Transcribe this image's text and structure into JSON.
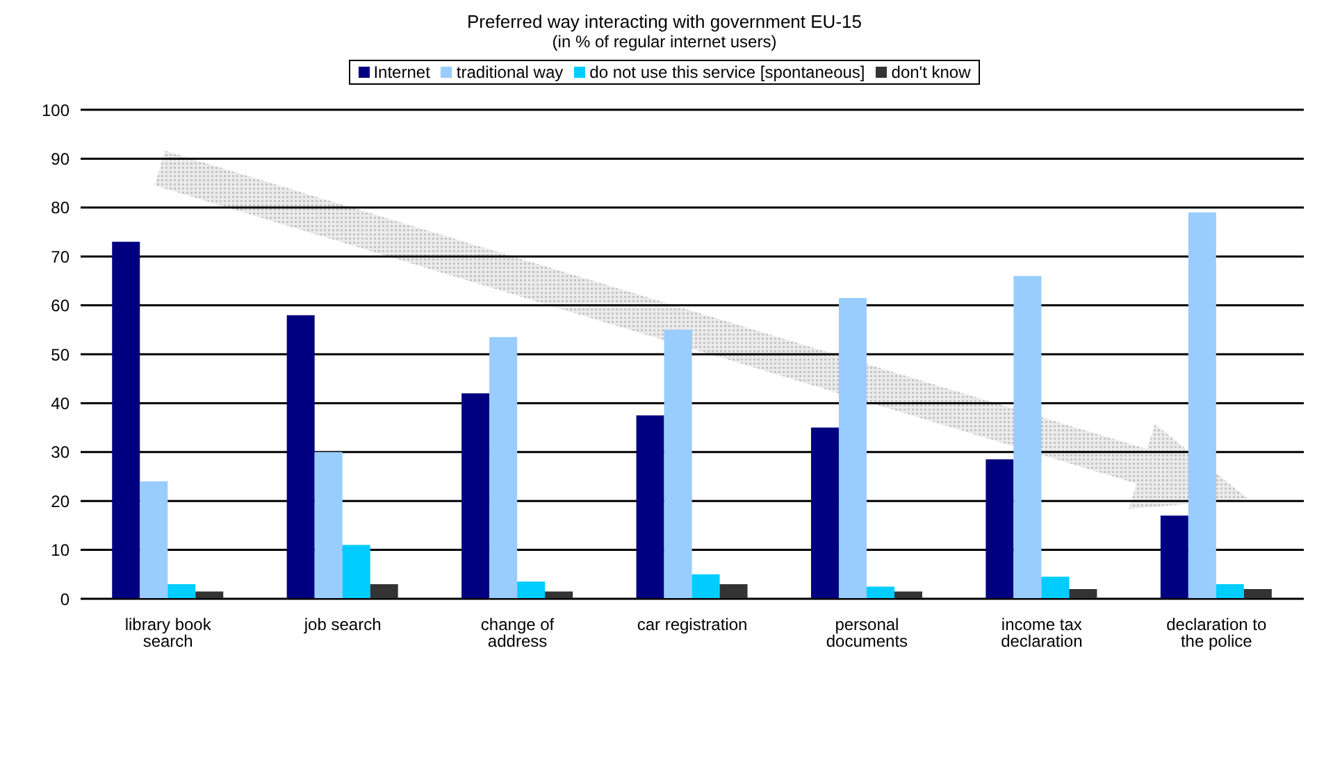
{
  "chart_data": {
    "type": "bar",
    "title": "Preferred way interacting with government EU-15",
    "subtitle": "(in % of regular internet users)",
    "categories": [
      "library book search",
      "job search",
      "change of address",
      "car registration",
      "personal documents",
      "income tax declaration",
      "declaration to the police"
    ],
    "series": [
      {
        "name": "Internet",
        "color": "#000080",
        "values": [
          73,
          58,
          42,
          37.5,
          35,
          28.5,
          17
        ]
      },
      {
        "name": "traditional way",
        "color": "#99ccff",
        "values": [
          24,
          30,
          53.5,
          55,
          61.5,
          66,
          79
        ]
      },
      {
        "name": "do not use this service [spontaneous]",
        "color": "#00ccff",
        "values": [
          3,
          11,
          3.5,
          5,
          2.5,
          4.5,
          3
        ]
      },
      {
        "name": "don't know",
        "color": "#333333",
        "values": [
          1.5,
          3,
          1.5,
          3,
          1.5,
          2,
          2
        ]
      }
    ],
    "ylim": [
      0,
      100
    ],
    "yticks": [
      0,
      10,
      20,
      30,
      40,
      50,
      60,
      70,
      80,
      90,
      100
    ],
    "grid": "y",
    "legend": "top"
  }
}
